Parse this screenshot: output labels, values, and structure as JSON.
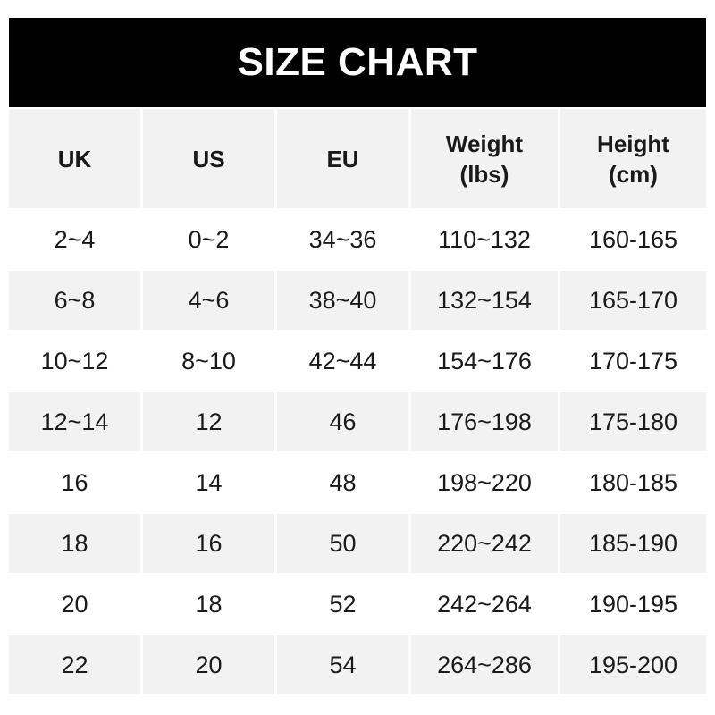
{
  "title": "SIZE CHART",
  "chart_data": {
    "type": "table",
    "title": "SIZE CHART",
    "columns": [
      "UK",
      "US",
      "EU",
      "Weight\n(lbs)",
      "Height\n(cm)"
    ],
    "rows": [
      [
        "2~4",
        "0~2",
        "34~36",
        "110~132",
        "160-165"
      ],
      [
        "6~8",
        "4~6",
        "38~40",
        "132~154",
        "165-170"
      ],
      [
        "10~12",
        "8~10",
        "42~44",
        "154~176",
        "170-175"
      ],
      [
        "12~14",
        "12",
        "46",
        "176~198",
        "175-180"
      ],
      [
        "16",
        "14",
        "48",
        "198~220",
        "180-185"
      ],
      [
        "18",
        "16",
        "50",
        "220~242",
        "185-190"
      ],
      [
        "20",
        "18",
        "52",
        "242~264",
        "190-195"
      ],
      [
        "22",
        "20",
        "54",
        "264~286",
        "195-200"
      ]
    ]
  },
  "colors": {
    "banner": "#000000",
    "header_bg": "#f2f2f2",
    "stripe": "#f2f2f2",
    "text": "#1a1a1a"
  }
}
